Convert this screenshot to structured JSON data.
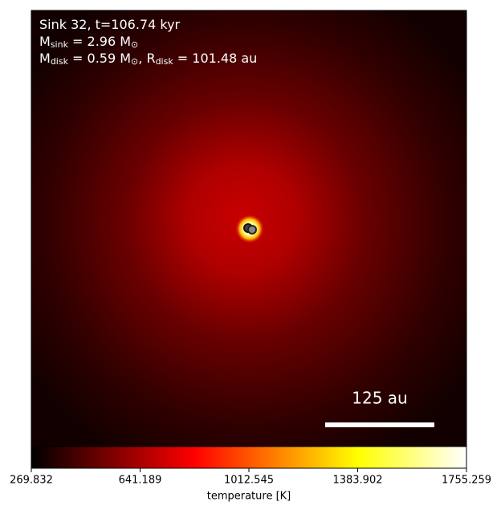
{
  "chart_data": {
    "type": "heatmap",
    "annotation_lines": [
      [
        {
          "text": "Sink 32, t=106.74 kyr",
          "sub": false
        }
      ],
      [
        {
          "text": "M",
          "sub": false
        },
        {
          "text": "sink",
          "sub": true
        },
        {
          "text": " = 2.96 M",
          "sub": false
        },
        {
          "text": "⊙",
          "sub": true
        }
      ],
      [
        {
          "text": "M",
          "sub": false
        },
        {
          "text": "disk",
          "sub": true
        },
        {
          "text": " = 0.59 M",
          "sub": false
        },
        {
          "text": "⊙",
          "sub": true
        },
        {
          "text": ", R",
          "sub": false
        },
        {
          "text": "disk",
          "sub": true
        },
        {
          "text": " = 101.48 au",
          "sub": false
        }
      ]
    ],
    "scale_bar_label": "125 au",
    "colorbar": {
      "label": "temperature [K]",
      "lim": [
        269.832,
        1755.259
      ],
      "ticks": [
        269.832,
        641.189,
        1012.545,
        1383.902,
        1755.259
      ]
    }
  }
}
